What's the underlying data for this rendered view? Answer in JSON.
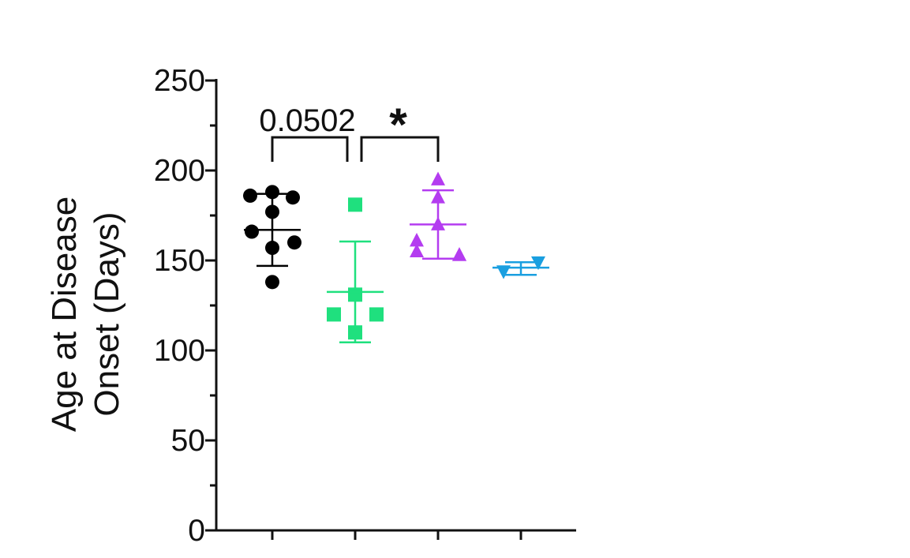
{
  "chart_data": {
    "type": "scatter",
    "title": "",
    "xlabel": "",
    "ylabel_lines": [
      "Age at Disease",
      "Onset (Days)"
    ],
    "ylim": [
      0,
      250
    ],
    "yticks": [
      0,
      50,
      100,
      150,
      200,
      250
    ],
    "y_minor_step": 25,
    "grid": false,
    "groups": [
      {
        "color": "#000000",
        "marker": "circle",
        "values": [
          186,
          188,
          185,
          177,
          166,
          160,
          157,
          138
        ],
        "mean": 167,
        "sd_upper": 187,
        "sd_lower": 147
      },
      {
        "color": "#1fe07e",
        "marker": "square",
        "values": [
          181,
          131,
          120,
          120,
          110
        ],
        "mean": 132.5,
        "sd_upper": 160.5,
        "sd_lower": 104.5
      },
      {
        "color": "#b43cf0",
        "marker": "triangle-up",
        "values": [
          195,
          185,
          170,
          161,
          155,
          153,
          153
        ],
        "mean": 170,
        "sd_upper": 189,
        "sd_lower": 151
      },
      {
        "color": "#1a9fe0",
        "marker": "triangle-down",
        "values": [
          149,
          144
        ],
        "mean": 146,
        "sd_upper": 149,
        "sd_lower": 142
      }
    ],
    "annotations": [
      {
        "text": "0.0502",
        "from_group": 0,
        "to_group": 1
      },
      {
        "text": "*",
        "from_group": 1,
        "to_group": 2
      }
    ]
  }
}
